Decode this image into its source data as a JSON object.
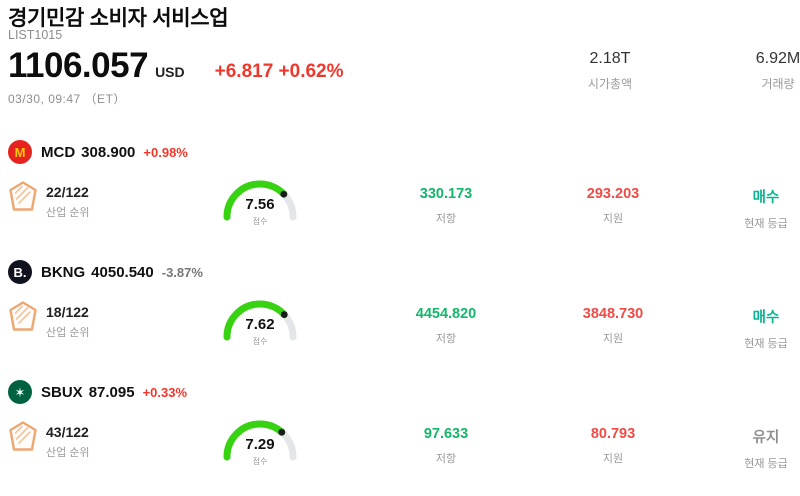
{
  "header": {
    "title": "경기민감 소비자 서비스업",
    "list_id": "LIST1015",
    "price": "1106.057",
    "currency": "USD",
    "change": "+6.817 +0.62%",
    "datetime": "03/30, 09:47 （ET）",
    "market_cap": {
      "value": "2.18T",
      "label": "시가총액"
    },
    "volume": {
      "value": "6.92M",
      "label": "거래량"
    }
  },
  "labels": {
    "rank": "산업 순위",
    "score": "점수",
    "resistance": "저항",
    "support": "지원",
    "rating": "현재 등급"
  },
  "colors": {
    "up": "#ef372c",
    "neutral": "#777777",
    "resistance": "#12b76a",
    "support": "#f04a45",
    "buy": "#0ab591",
    "hold": "#8f8f8f",
    "gauge_fill": "#37d313",
    "gauge_track": "#e4e7ea"
  },
  "stocks": [
    {
      "ticker": "MCD",
      "price": "308.900",
      "change": "+0.98%",
      "change_color": "#ef372c",
      "logo_text": "M",
      "logo_bg": "#e6231e",
      "logo_fg": "#ffc800",
      "rank": "22/122",
      "score": 7.56,
      "score_text": "7.56",
      "resistance": "330.173",
      "support": "293.203",
      "rating": "매수",
      "rating_color": "#0ab591"
    },
    {
      "ticker": "BKNG",
      "price": "4050.540",
      "change": "-3.87%",
      "change_color": "#777777",
      "logo_text": "B.",
      "logo_bg": "#10131f",
      "logo_fg": "#ffffff",
      "rank": "18/122",
      "score": 7.62,
      "score_text": "7.62",
      "resistance": "4454.820",
      "support": "3848.730",
      "rating": "매수",
      "rating_color": "#0ab591"
    },
    {
      "ticker": "SBUX",
      "price": "87.095",
      "change": "+0.33%",
      "change_color": "#ef372c",
      "logo_text": "✶",
      "logo_bg": "#006241",
      "logo_fg": "#ffffff",
      "rank": "43/122",
      "score": 7.29,
      "score_text": "7.29",
      "resistance": "97.633",
      "support": "80.793",
      "rating": "유지",
      "rating_color": "#8f8f8f"
    }
  ]
}
